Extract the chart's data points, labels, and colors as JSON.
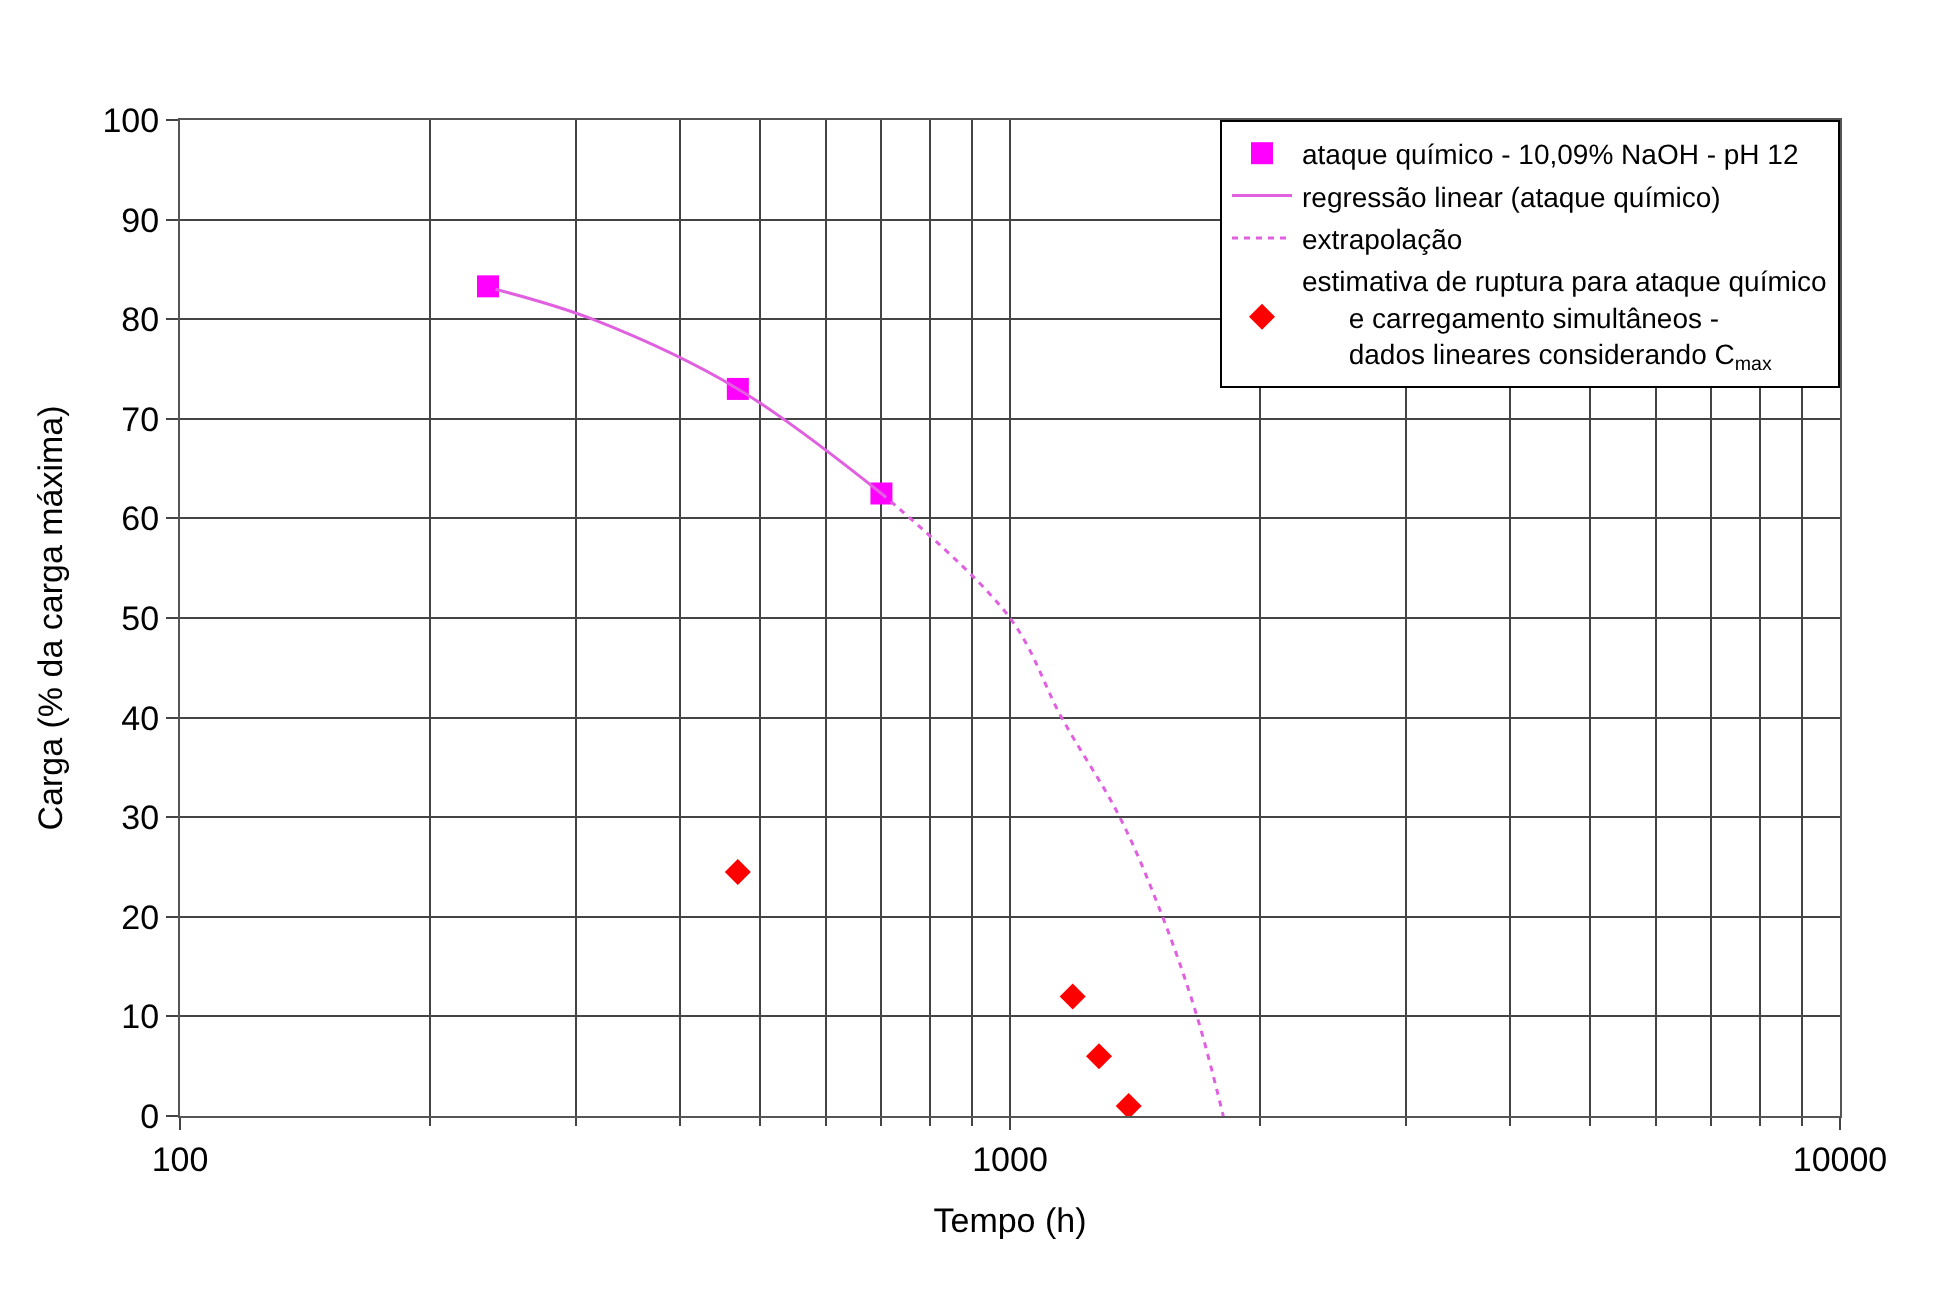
{
  "chart_data": {
    "type": "scatter",
    "xlabel": "Tempo (h)",
    "ylabel": "Carga (% da carga máxima)",
    "log": "x",
    "xlim": [
      100,
      10000
    ],
    "xticks": [
      100,
      1000,
      10000
    ],
    "ylim": [
      0,
      100
    ],
    "yticks": [
      0,
      10,
      20,
      30,
      40,
      50,
      60,
      70,
      80,
      90,
      100
    ],
    "grid": true,
    "legend": "top right",
    "series": [
      {
        "name": "ataque químico - 10,09% NaOH - pH 12",
        "marker": "square",
        "color": "#ff00ff",
        "x": [
          235,
          470,
          700
        ],
        "values": [
          83.3,
          73,
          62.5
        ]
      },
      {
        "name": "regressão linear (ataque químico)",
        "type": "line",
        "marker": "none",
        "line_style": "solid",
        "color": "#e060e0",
        "x": [
          240,
          314,
          470,
          700
        ],
        "values": [
          83,
          80,
          73,
          62.5
        ]
      },
      {
        "name": "extrapolação",
        "type": "line",
        "marker": "none",
        "line_style": "dotted",
        "color": "#e060e0",
        "x": [
          700,
          1000,
          1154,
          1356,
          1527,
          1680,
          1807
        ],
        "values": [
          62.5,
          50,
          40,
          30,
          20,
          10,
          0
        ]
      },
      {
        "name": "estimativa de ruptura para ataque químico\n      e carregamento simultâneos -\n      dados lineares considerando C$_{max}$",
        "marker": "diamond",
        "color": "#ff0000",
        "x": [
          470,
          1190,
          1280,
          1390
        ],
        "values": [
          24.5,
          12,
          6,
          1
        ]
      }
    ]
  }
}
